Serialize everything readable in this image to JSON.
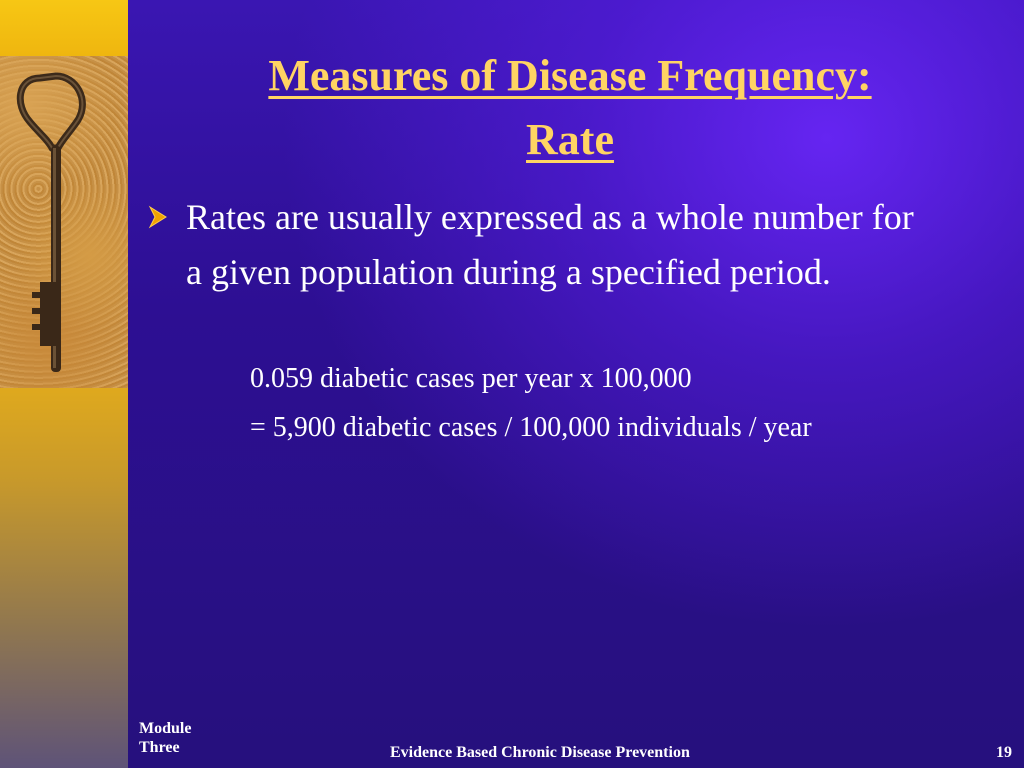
{
  "slide": {
    "title_line1": "Measures of Disease Frequency:",
    "title_line2": "Rate",
    "bullet": "Rates are usually expressed as a whole number for a given population during a specified period.",
    "example_line1": "0.059 diabetic cases per year x 100,000",
    "example_line2": "= 5,900 diabetic cases / 100,000 individuals / year"
  },
  "footer": {
    "module_line1": "Module",
    "module_line2": "Three",
    "course_title": "Evidence Based Chronic Disease Prevention",
    "page_number": "19"
  },
  "icons": {
    "bullet": "arrow-bullet-icon",
    "image": "old-key-image"
  },
  "colors": {
    "title": "#ffd463",
    "bullet_arrow": "#f2a300",
    "background": "#2a0f86",
    "sidebar": "#f4bd10"
  }
}
